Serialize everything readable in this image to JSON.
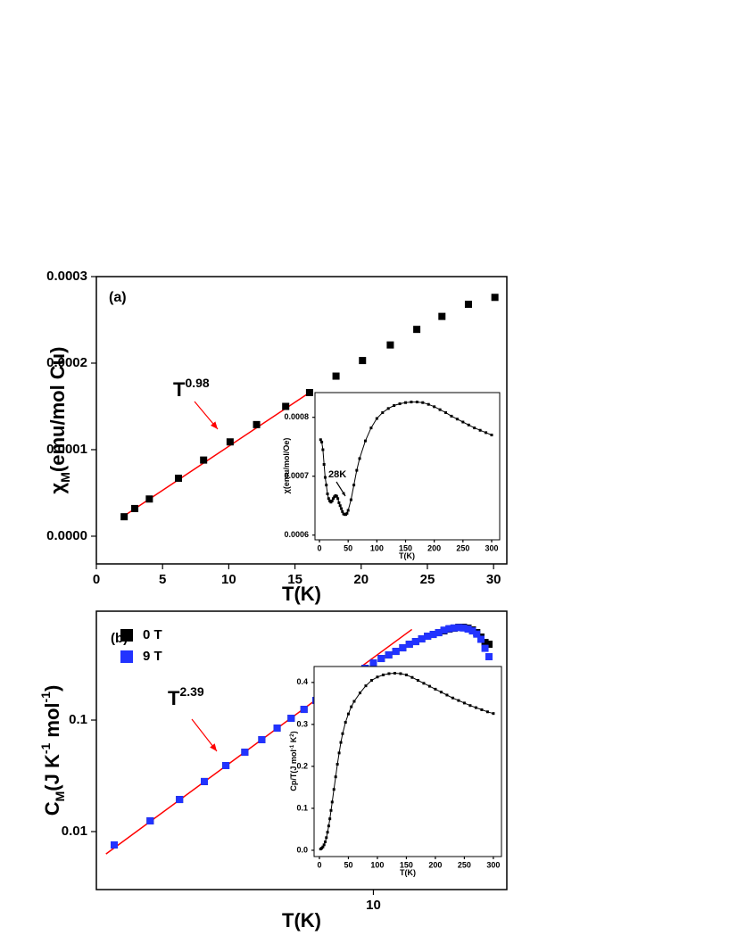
{
  "chart_data": [
    {
      "type": "scatter",
      "xlabel": [
        {
          "text": "T(K)"
        }
      ],
      "ylabel": [
        {
          "text": "χ"
        },
        {
          "text": "M",
          "script": "sub"
        },
        {
          "text": "(emu/mol Cu)"
        }
      ],
      "xlim": [
        0,
        31
      ],
      "xticks": [
        0,
        5,
        10,
        15,
        20,
        25,
        30
      ],
      "ylim": [
        -3.2e-05,
        0.0003
      ],
      "yticks": [
        {
          "value": 0,
          "label": "0.0000"
        },
        0.0001,
        0.0002,
        0.0003
      ],
      "x": [
        2.1,
        2.9,
        4,
        6.2,
        8.1,
        10.1,
        12.1,
        14.3,
        16.1,
        18.1,
        20.1,
        22.2,
        24.2,
        26.1,
        28.1,
        30.1
      ],
      "series": [
        {
          "color": "#000000",
          "values": [
            2.25e-05,
            3.2e-05,
            4.3e-05,
            6.7e-05,
            8.8e-05,
            0.000109,
            0.000129,
            0.00015,
            0.000166,
            0.000185,
            0.000203,
            0.000221,
            0.000239,
            0.000254,
            0.000268,
            0.000276
          ]
        }
      ],
      "fit": {
        "color": "#ff0000",
        "x": [
          2,
          16.1
        ],
        "values": [
          2.25e-05,
          0.000166
        ]
      },
      "annotations": [
        {
          "parts": [
            {
              "text": "(a)"
            }
          ],
          "color": "#000000"
        },
        {
          "parts": [
            {
              "text": "T"
            },
            {
              "text": "0.98",
              "script": "super"
            }
          ],
          "color": "#ff0000"
        }
      ]
    },
    {
      "type": "line",
      "xlabel": [
        {
          "text": "T(K)"
        }
      ],
      "ylabel": [
        {
          "text": "χ(emu/mol/Oe)"
        }
      ],
      "xlim": [
        -7.8,
        314
      ],
      "xticks": [
        0,
        50,
        100,
        150,
        200,
        250,
        300
      ],
      "ylim": [
        0.000592,
        0.000842
      ],
      "yticks": [
        0.0006,
        0.0007,
        0.0008
      ],
      "x": [
        2,
        4,
        6,
        8,
        10,
        12,
        14,
        16,
        18,
        20,
        22,
        24,
        26,
        28,
        30,
        32,
        34,
        36,
        38,
        40,
        42,
        44,
        46,
        48,
        50,
        55,
        60,
        65,
        70,
        80,
        90,
        100,
        110,
        120,
        130,
        140,
        150,
        160,
        170,
        180,
        190,
        200,
        210,
        220,
        230,
        240,
        250,
        260,
        270,
        280,
        290,
        300
      ],
      "series": [
        {
          "color": "#000000",
          "values": [
            0.000762,
            0.000758,
            0.000745,
            0.00072,
            0.000698,
            0.000685,
            0.00067,
            0.000662,
            0.000658,
            0.000656,
            0.000658,
            0.000662,
            0.000665,
            0.000667,
            0.000666,
            0.000662,
            0.000655,
            0.00065,
            0.000645,
            0.00064,
            0.000636,
            0.000635,
            0.000635,
            0.000637,
            0.000642,
            0.00066,
            0.000685,
            0.00071,
            0.00073,
            0.00076,
            0.000782,
            0.000798,
            0.000808,
            0.000815,
            0.00082,
            0.000823,
            0.000825,
            0.000826,
            0.000826,
            0.000825,
            0.000822,
            0.000818,
            0.000813,
            0.000808,
            0.000802,
            0.000797,
            0.000792,
            0.000787,
            0.000782,
            0.000778,
            0.000774,
            0.00077
          ]
        }
      ],
      "annotations": [
        {
          "parts": [
            {
              "text": "28K"
            }
          ],
          "color": "#000000"
        }
      ]
    },
    {
      "type": "scatter",
      "xlabel": [
        {
          "text": "T(K)"
        }
      ],
      "ylabel": [
        {
          "text": "C"
        },
        {
          "text": "M",
          "script": "sub"
        },
        {
          "text": "(J K"
        },
        {
          "text": "-1",
          "script": "super"
        },
        {
          "text": " mol"
        },
        {
          "text": "-1",
          "script": "super"
        },
        {
          "text": ")"
        }
      ],
      "xscale": "log",
      "yscale": "log",
      "xlim": [
        1.79,
        22.9
      ],
      "xticks": [
        10
      ],
      "ylim": [
        0.00302,
        0.947
      ],
      "yticks": [
        0.01,
        0.1
      ],
      "legend": "upper left",
      "x": [
        2,
        2.5,
        3,
        3.5,
        4,
        4.5,
        5,
        5.5,
        6,
        6.5,
        7,
        7.5,
        8,
        8.5,
        9,
        9.5,
        10,
        10.5,
        11,
        11.5,
        12,
        12.5,
        13,
        13.5,
        14,
        14.5,
        15,
        15.5,
        16,
        16.5,
        17,
        17.5,
        18,
        18.5,
        19,
        19.5,
        20,
        20.5
      ],
      "series": [
        {
          "name": "0 T",
          "color": "#000000",
          "values": [
            0.00759,
            0.01247,
            0.0194,
            0.0281,
            0.0391,
            0.0515,
            0.0667,
            0.0847,
            0.1038,
            0.1247,
            0.15,
            0.177,
            0.2051,
            0.2333,
            0.2606,
            0.2911,
            0.3251,
            0.3565,
            0.3837,
            0.413,
            0.4446,
            0.4786,
            0.5058,
            0.5346,
            0.5649,
            0.5861,
            0.6081,
            0.631,
            0.6546,
            0.6668,
            0.6792,
            0.6792,
            0.6668,
            0.6427,
            0.6081,
            0.5546,
            0.4966,
            0.4786
          ]
        },
        {
          "name": "9 T",
          "color": "#2233ff",
          "values": [
            0.00759,
            0.01247,
            0.0194,
            0.0281,
            0.0391,
            0.0515,
            0.0667,
            0.0847,
            0.1038,
            0.1247,
            0.15,
            0.177,
            0.2051,
            0.2333,
            0.2606,
            0.2911,
            0.3251,
            0.3565,
            0.3837,
            0.413,
            0.4446,
            0.4786,
            0.5058,
            0.5346,
            0.5649,
            0.5861,
            0.6081,
            0.64,
            0.66,
            0.67,
            0.675,
            0.67,
            0.655,
            0.63,
            0.59,
            0.53,
            0.44,
            0.37
          ]
        }
      ],
      "fit": {
        "color": "#ff0000",
        "x": [
          1.9,
          12.7
        ],
        "values": [
          0.0063,
          0.65
        ]
      },
      "annotations": [
        {
          "parts": [
            {
              "text": "(b)"
            }
          ],
          "color": "#000000"
        },
        {
          "parts": [
            {
              "text": "T"
            },
            {
              "text": "2.39",
              "script": "super"
            }
          ],
          "color": "#ff0000"
        }
      ]
    },
    {
      "type": "line",
      "xlabel": [
        {
          "text": "T(K)"
        }
      ],
      "ylabel": [
        {
          "text": "Cp/T(J mol"
        },
        {
          "text": "-1",
          "script": "super"
        },
        {
          "text": " K"
        },
        {
          "text": "2",
          "script": "super"
        },
        {
          "text": ")"
        }
      ],
      "xlim": [
        -9.2,
        314
      ],
      "xticks": [
        0,
        50,
        100,
        150,
        200,
        250,
        300
      ],
      "ylim": [
        -0.015,
        0.438
      ],
      "yticks": [
        {
          "value": 0,
          "label": "0.0"
        },
        0.1,
        0.2,
        0.3,
        0.4
      ],
      "x": [
        2,
        4,
        6,
        8,
        10,
        12,
        14,
        16,
        18,
        20,
        22,
        25,
        28,
        31,
        34,
        37,
        40,
        45,
        50,
        55,
        60,
        70,
        80,
        90,
        100,
        110,
        120,
        130,
        140,
        150,
        160,
        170,
        180,
        190,
        200,
        210,
        220,
        230,
        240,
        250,
        260,
        270,
        280,
        290,
        300
      ],
      "series": [
        {
          "color": "#000000",
          "values": [
            0.003,
            0.005,
            0.008,
            0.013,
            0.02,
            0.03,
            0.043,
            0.058,
            0.075,
            0.095,
            0.115,
            0.145,
            0.175,
            0.205,
            0.232,
            0.257,
            0.278,
            0.305,
            0.325,
            0.342,
            0.355,
            0.375,
            0.392,
            0.405,
            0.413,
            0.418,
            0.421,
            0.422,
            0.421,
            0.418,
            0.412,
            0.405,
            0.398,
            0.391,
            0.384,
            0.377,
            0.37,
            0.363,
            0.357,
            0.351,
            0.345,
            0.34,
            0.335,
            0.33,
            0.326
          ]
        }
      ]
    }
  ]
}
